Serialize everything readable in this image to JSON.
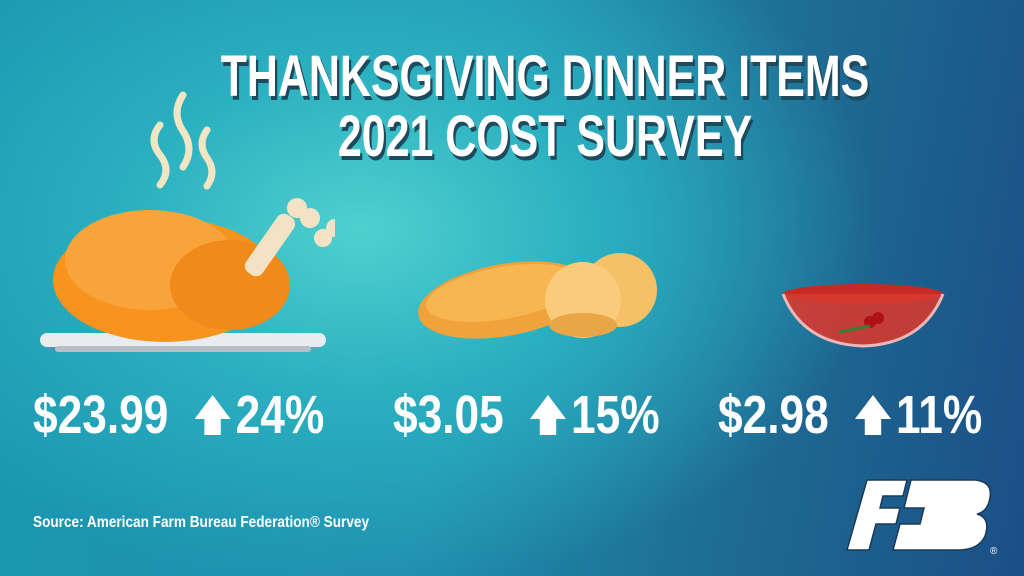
{
  "title": {
    "line1": "THANKSGIVING DINNER ITEMS",
    "line2": "2021 COST SURVEY"
  },
  "items": [
    {
      "name": "turkey",
      "icon": "turkey-icon",
      "price": "$23.99",
      "change": "24%",
      "direction": "up"
    },
    {
      "name": "rolls",
      "icon": "bread-rolls-icon",
      "price": "$3.05",
      "change": "15%",
      "direction": "up"
    },
    {
      "name": "cranberries",
      "icon": "cranberry-bowl-icon",
      "price": "$2.98",
      "change": "11%",
      "direction": "up"
    }
  ],
  "source": "Source: American Farm Bureau Federation® Survey",
  "logo": {
    "text": "FB",
    "registered": "®"
  },
  "colors": {
    "background_light": "#4fd0cf",
    "background_dark": "#1b4f86",
    "text": "#ffffff",
    "turkey": "#f5922a"
  }
}
